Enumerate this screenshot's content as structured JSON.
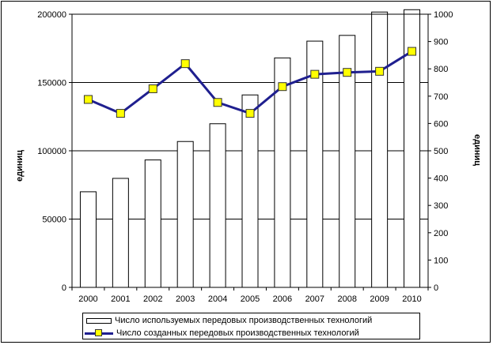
{
  "colors": {
    "bar_fill": "#ffffff",
    "bar_stroke": "#000000",
    "line": "#1f1f8f",
    "marker": "#ffff00"
  },
  "chart_data": {
    "type": "bar+line",
    "categories": [
      "2000",
      "2001",
      "2002",
      "2003",
      "2004",
      "2005",
      "2006",
      "2007",
      "2008",
      "2009",
      "2010"
    ],
    "series": [
      {
        "name": "Число используемых передовых производственных технологий",
        "type": "bar",
        "axis": "left",
        "values": [
          70000,
          79800,
          93300,
          106800,
          119800,
          140900,
          168000,
          180300,
          184500,
          201600,
          203300
        ]
      },
      {
        "name": "Число созданных передовых производственных технологий",
        "type": "line",
        "axis": "right",
        "values": [
          688,
          637,
          727,
          819,
          677,
          637,
          735,
          780,
          787,
          791,
          864
        ]
      }
    ],
    "left_axis": {
      "label": "единиц",
      "min": 0,
      "max": 200000,
      "ticks": [
        "0",
        "50000",
        "100000",
        "150000",
        "200000"
      ]
    },
    "right_axis": {
      "label": "единиц",
      "min": 0,
      "max": 1000,
      "ticks": [
        "0",
        "100",
        "200",
        "300",
        "400",
        "500",
        "600",
        "700",
        "800",
        "900",
        "1000"
      ]
    },
    "gridlines": "horizontal-major-left",
    "legend_position": "bottom"
  }
}
